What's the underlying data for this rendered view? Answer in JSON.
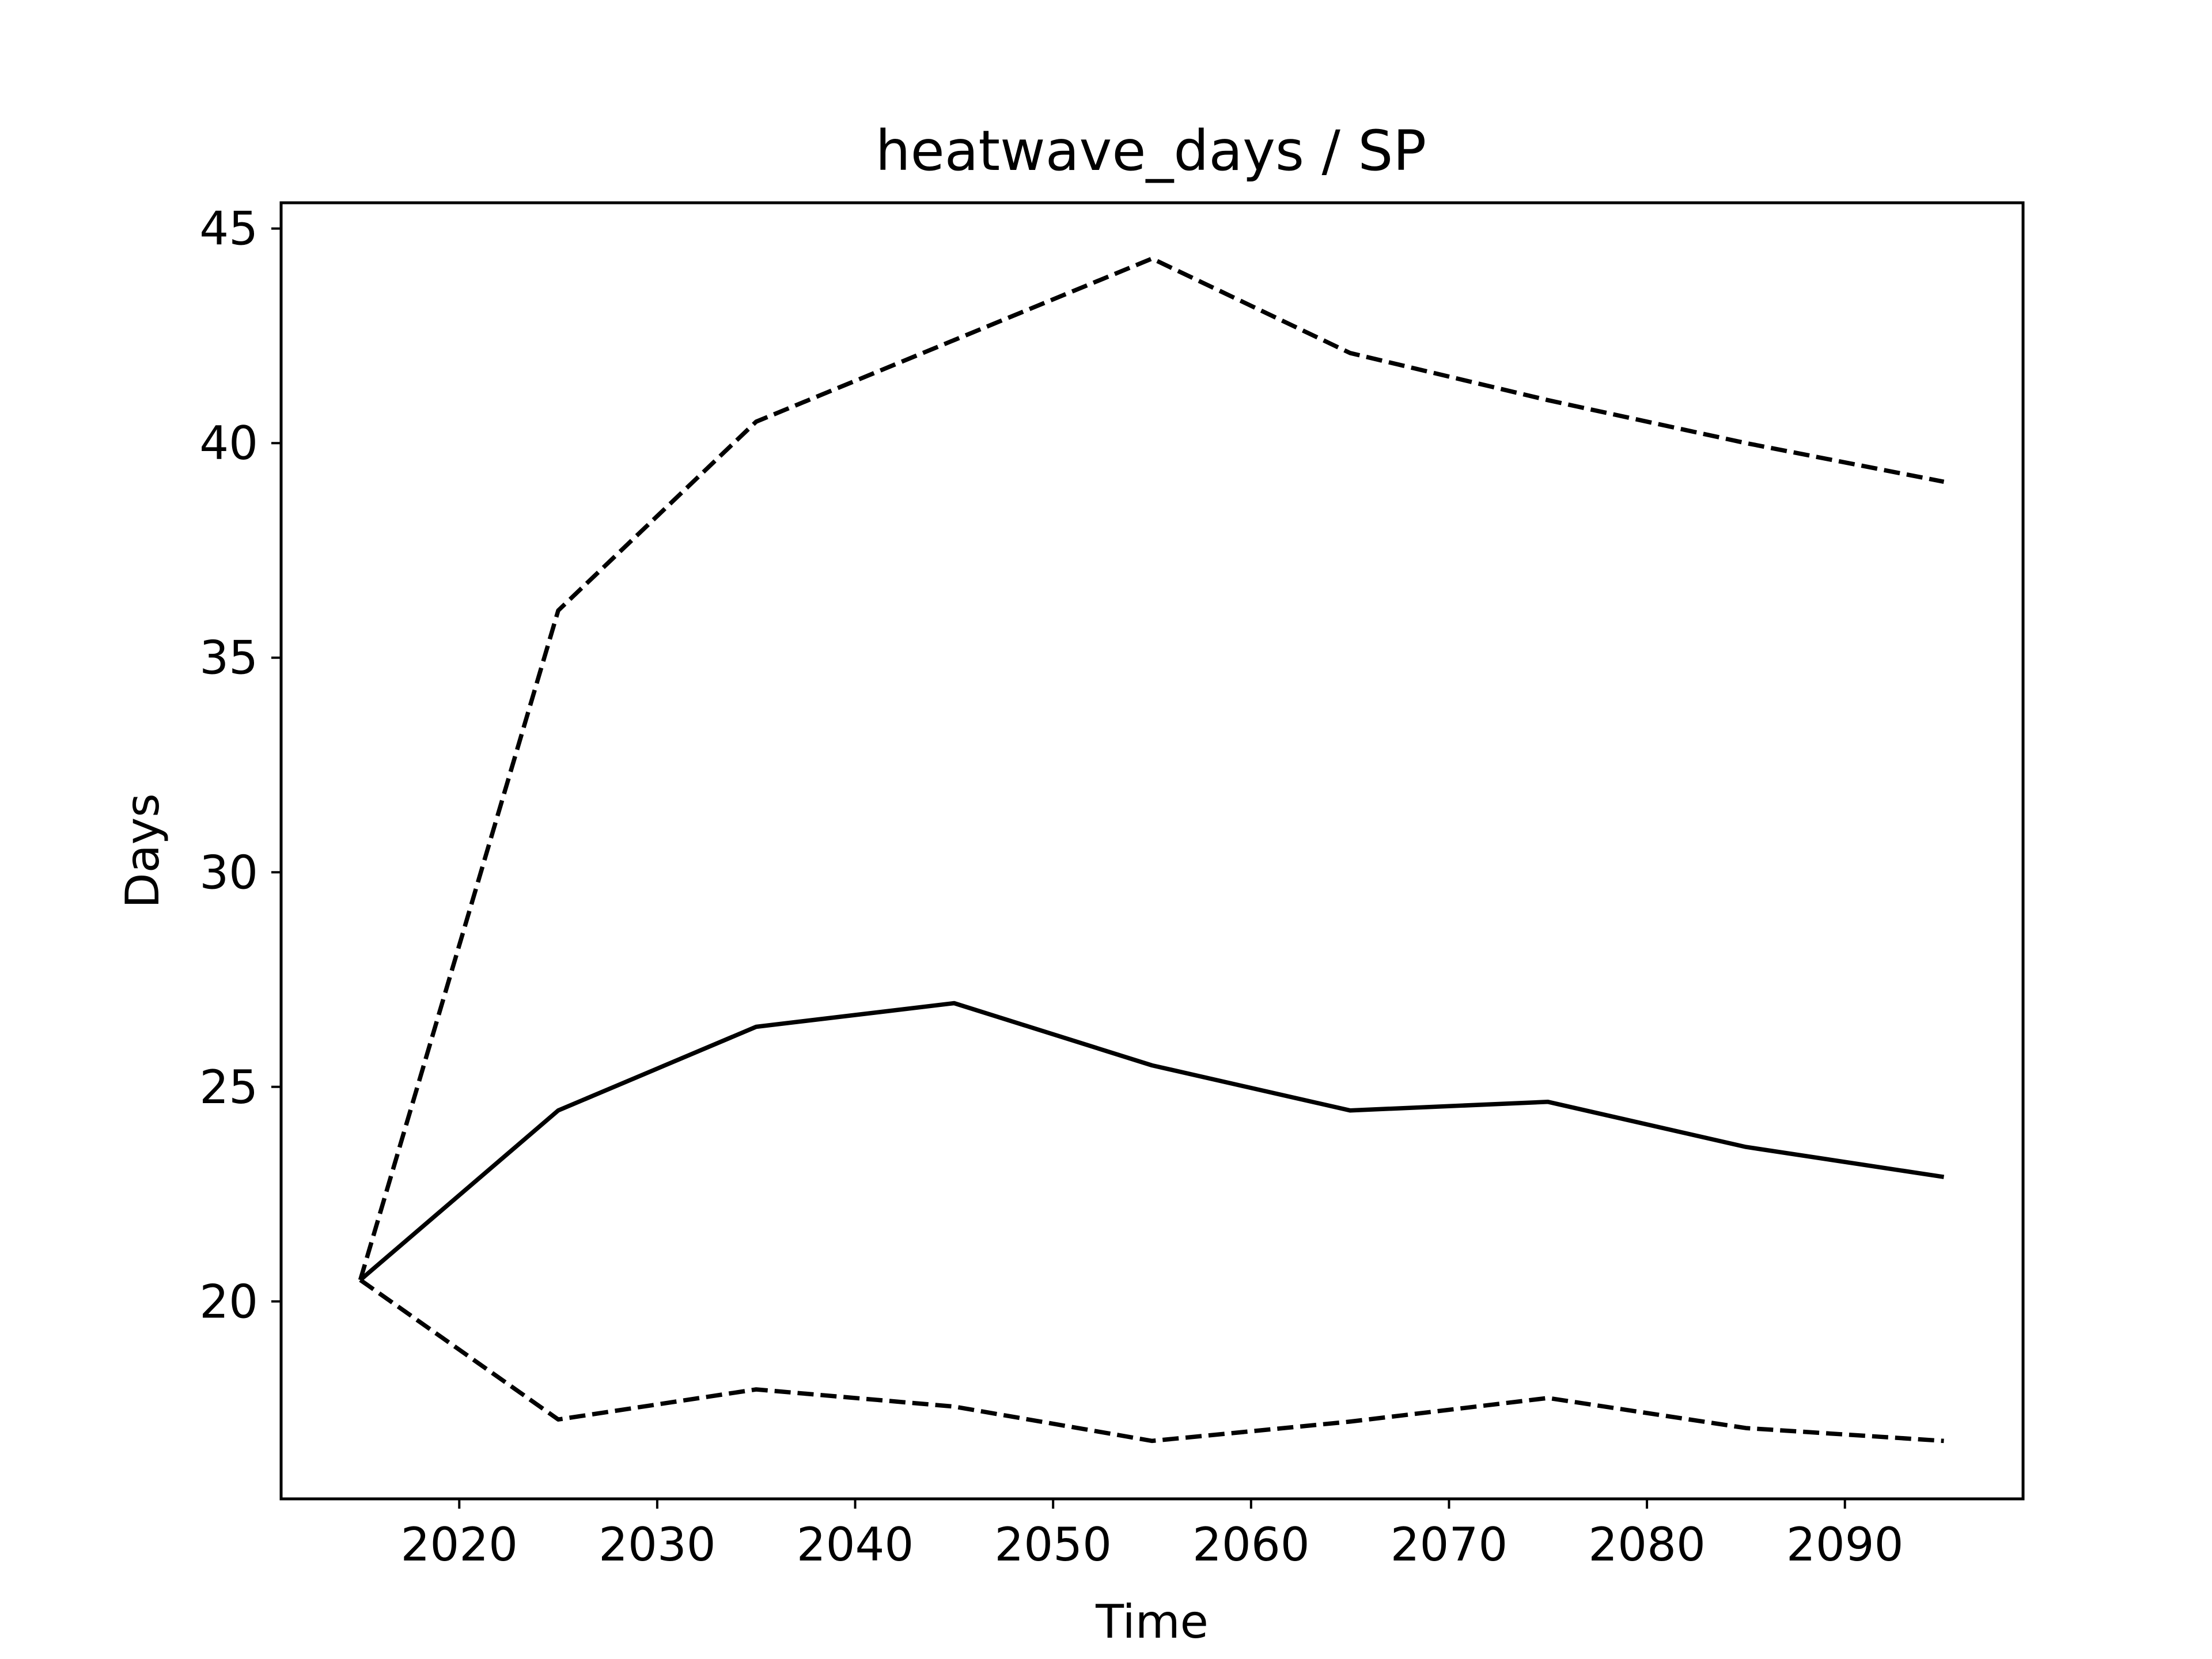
{
  "chart_data": {
    "type": "line",
    "title": "heatwave_days / SP",
    "xlabel": "Time",
    "ylabel": "Days",
    "x": [
      2015,
      2025,
      2035,
      2045,
      2055,
      2065,
      2075,
      2085,
      2095
    ],
    "series": [
      {
        "style": "solid",
        "color": "#000000",
        "values": [
          20.5,
          24.45,
          26.4,
          26.95,
          25.5,
          24.45,
          24.65,
          23.6,
          22.9
        ]
      },
      {
        "style": "dashed",
        "color": "#000000",
        "values": [
          20.5,
          36.1,
          40.5,
          42.4,
          44.3,
          42.1,
          41.0,
          40.0,
          39.1
        ]
      },
      {
        "style": "dashed",
        "color": "#000000",
        "values": [
          20.5,
          17.25,
          17.95,
          17.55,
          16.75,
          17.2,
          17.75,
          17.05,
          16.75
        ]
      }
    ],
    "xlim": [
      2011,
      2099
    ],
    "ylim": [
      15.4,
      45.6
    ],
    "xticks": [
      2020,
      2030,
      2040,
      2050,
      2060,
      2070,
      2080,
      2090
    ],
    "yticks": [
      20,
      25,
      30,
      35,
      40,
      45
    ],
    "grid": false,
    "legend": "none"
  }
}
